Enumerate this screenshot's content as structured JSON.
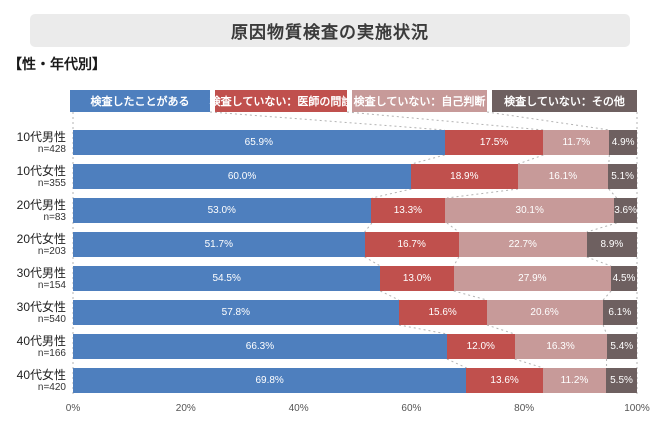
{
  "title": "原因物質検査の実施状況",
  "subtitle": "【性・年代別】",
  "legend": [
    {
      "label": "検査したことがある",
      "color": "#4e7fbe"
    },
    {
      "label": "検査していない：医師の問診",
      "color": "#c0504d"
    },
    {
      "label": "検査していない：自己判断",
      "color": "#c79a99"
    },
    {
      "label": "検査していない：その他",
      "color": "#6e6060"
    }
  ],
  "chart_data": {
    "type": "bar",
    "stacked": true,
    "orientation": "horizontal",
    "title": "原因物質検査の実施状況",
    "group_label": "【性・年代別】",
    "categories": [
      "10代男性",
      "10代女性",
      "20代男性",
      "20代女性",
      "30代男性",
      "30代女性",
      "40代男性",
      "40代女性"
    ],
    "sample_sizes": [
      "n=428",
      "n=355",
      "n=83",
      "n=203",
      "n=154",
      "n=540",
      "n=166",
      "n=420"
    ],
    "series": [
      {
        "name": "検査したことがある",
        "color": "#4e7fbe",
        "values": [
          65.9,
          60.0,
          53.0,
          51.7,
          54.5,
          57.8,
          66.3,
          69.8
        ]
      },
      {
        "name": "検査していない：医師の問診",
        "color": "#c0504d",
        "values": [
          17.5,
          18.9,
          13.3,
          16.7,
          13.0,
          15.6,
          12.0,
          13.6
        ]
      },
      {
        "name": "検査していない：自己判断",
        "color": "#c79a99",
        "values": [
          11.7,
          16.1,
          30.1,
          22.7,
          27.9,
          20.6,
          16.3,
          11.2
        ]
      },
      {
        "name": "検査していない：その他",
        "color": "#6e6060",
        "values": [
          4.9,
          5.1,
          3.6,
          8.9,
          4.5,
          6.1,
          5.4,
          5.5
        ]
      }
    ],
    "value_suffix": "%",
    "x_ticks": [
      "0%",
      "20%",
      "40%",
      "60%",
      "80%",
      "100%"
    ],
    "xlim": [
      0,
      100
    ],
    "legend_position": "top",
    "grid": false
  }
}
